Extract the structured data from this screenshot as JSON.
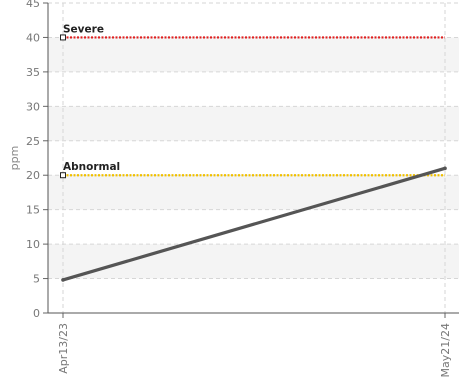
{
  "chart_data": {
    "type": "line",
    "title": "",
    "xlabel": "",
    "ylabel": "ppm",
    "ylim": [
      0,
      45
    ],
    "yticks": [
      0,
      5,
      10,
      15,
      20,
      25,
      30,
      35,
      40,
      45
    ],
    "x_tick_labels": [
      "Apr13/23",
      "May21/24"
    ],
    "grid": true,
    "legend": "none",
    "series": [
      {
        "x": [
          "Apr13/23",
          "May21/24"
        ],
        "values": [
          4.8,
          21.0
        ],
        "color": "#555555"
      }
    ],
    "thresholds": [
      {
        "label": "Severe",
        "value": 40,
        "color": "#e02020"
      },
      {
        "label": "Abnormal",
        "value": 20,
        "color": "#f0c000"
      }
    ]
  }
}
